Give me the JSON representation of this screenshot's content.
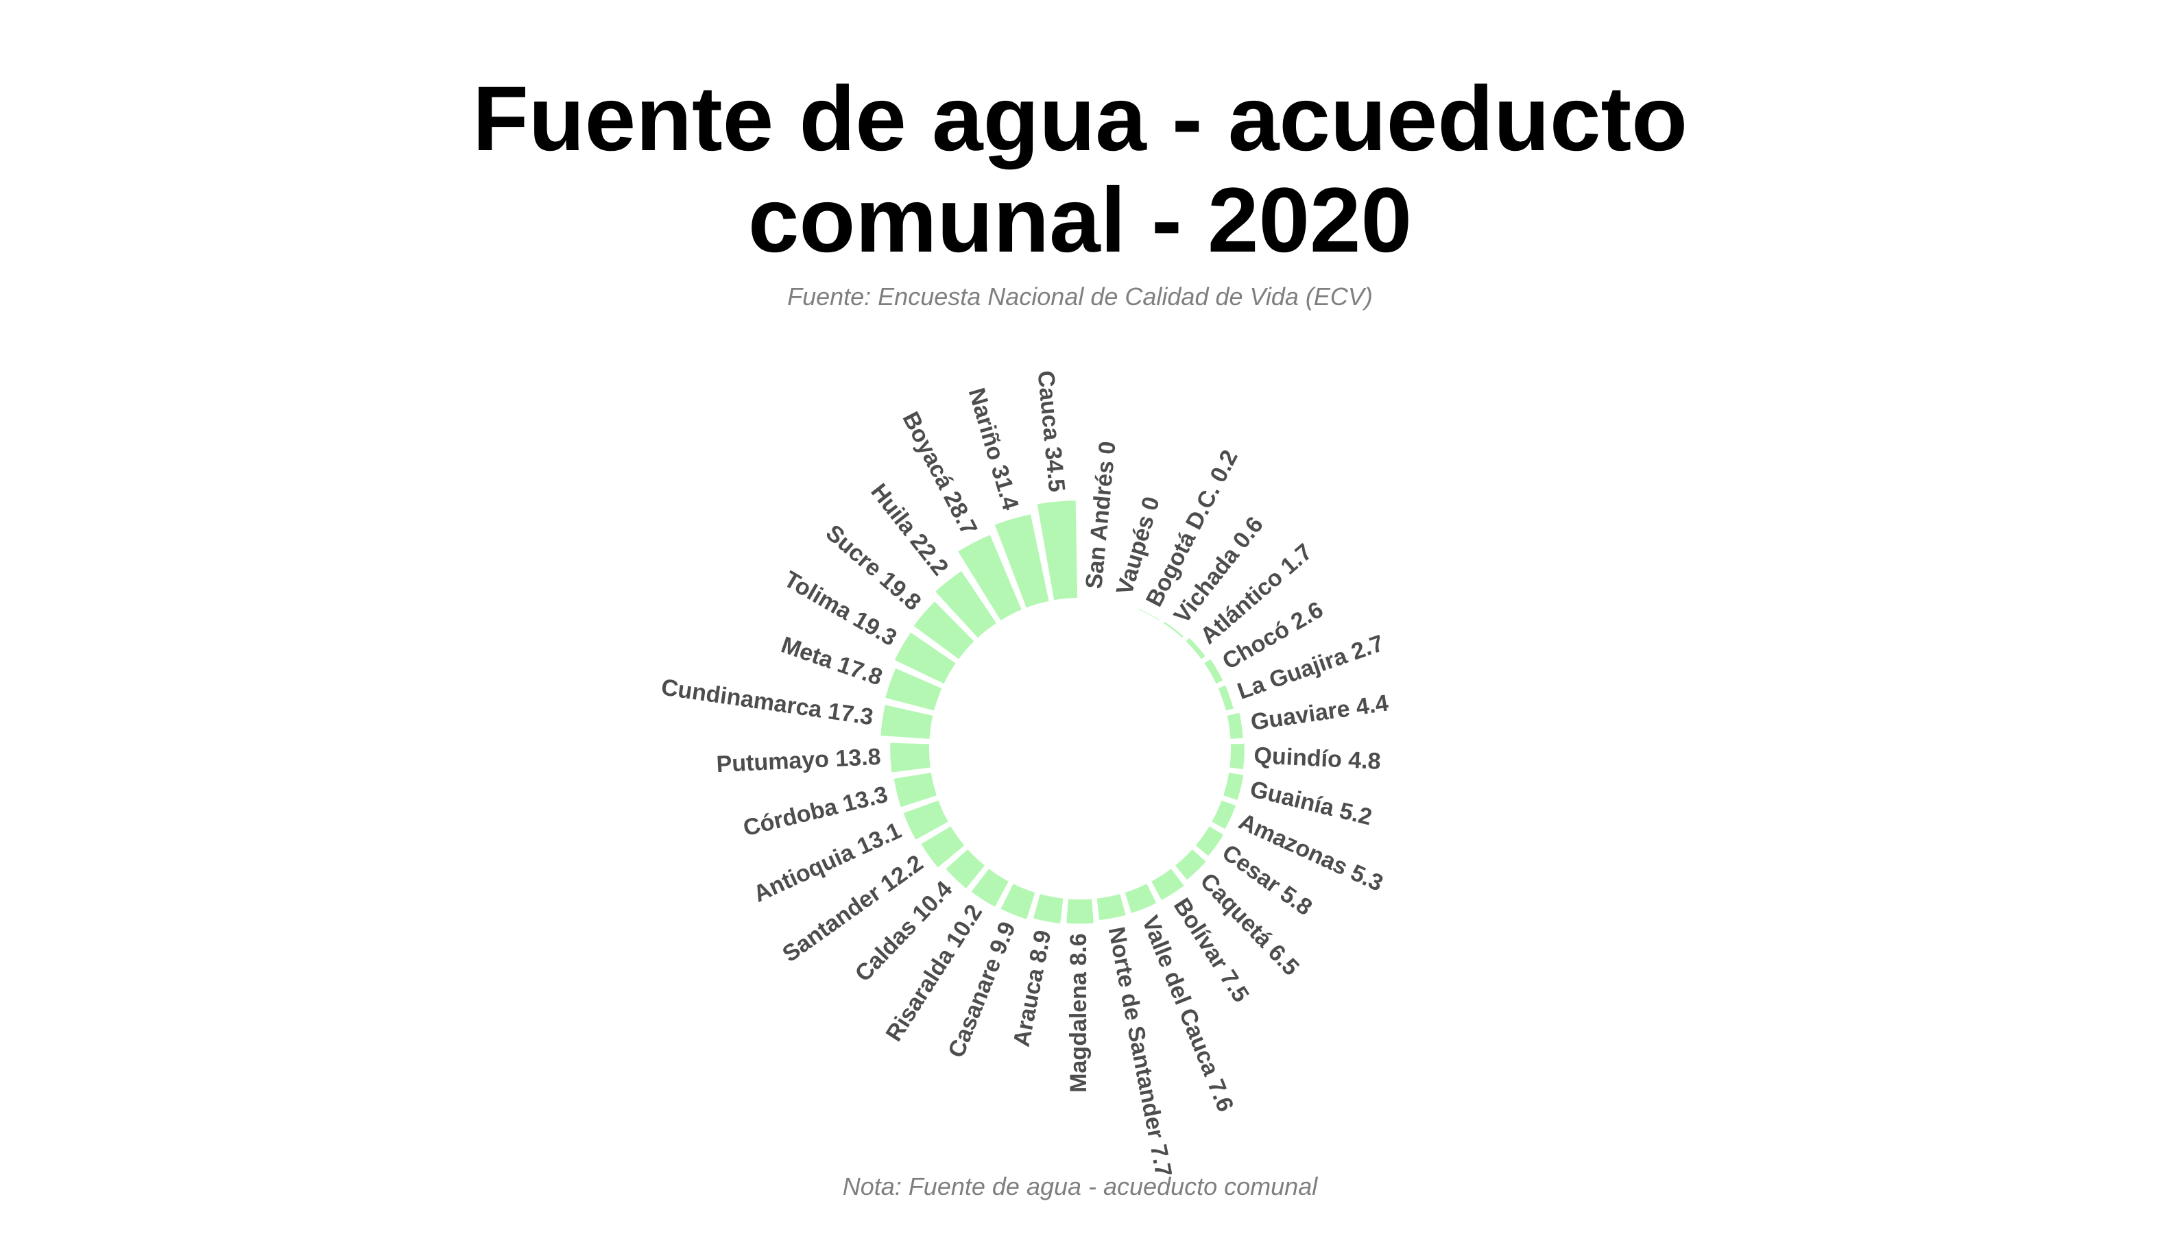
{
  "chart_data": {
    "type": "bar",
    "polar": true,
    "title": "Fuente de agua - acueducto comunal - 2020",
    "subtitle": "Fuente: Encuesta Nacional de Calidad de Vida (ECV)",
    "caption": "Nota: Fuente de agua - acueducto comunal",
    "bar_color": "#b3f7b3",
    "label_color": "#4d4d4d",
    "title_color": "#000000",
    "note_color": "#7f7f7f",
    "grid": false,
    "legend": "none",
    "categories": [
      "San Andrés",
      "Vaupés",
      "Bogotá D.C.",
      "Vichada",
      "Atlántico",
      "Chocó",
      "La Guajira",
      "Guaviare",
      "Quindío",
      "Guainía",
      "Amazonas",
      "Cesar",
      "Caquetá",
      "Bolívar",
      "Valle del Cauca",
      "Norte de Santander",
      "Magdalena",
      "Arauca",
      "Casanare",
      "Risaralda",
      "Caldas",
      "Santander",
      "Antioquia",
      "Córdoba",
      "Putumayo",
      "Cundinamarca",
      "Meta",
      "Tolima",
      "Sucre",
      "Huila",
      "Boyacá",
      "Nariño",
      "Cauca"
    ],
    "values": [
      0,
      0,
      0.2,
      0.6,
      1.7,
      2.6,
      2.7,
      4.4,
      4.8,
      5.2,
      5.3,
      5.8,
      6.5,
      7.5,
      7.6,
      7.7,
      8.6,
      8.9,
      9.9,
      10.2,
      10.4,
      12.2,
      13.1,
      13.3,
      13.8,
      17.3,
      17.8,
      19.3,
      19.8,
      22.2,
      28.7,
      31.4,
      34.5
    ]
  }
}
